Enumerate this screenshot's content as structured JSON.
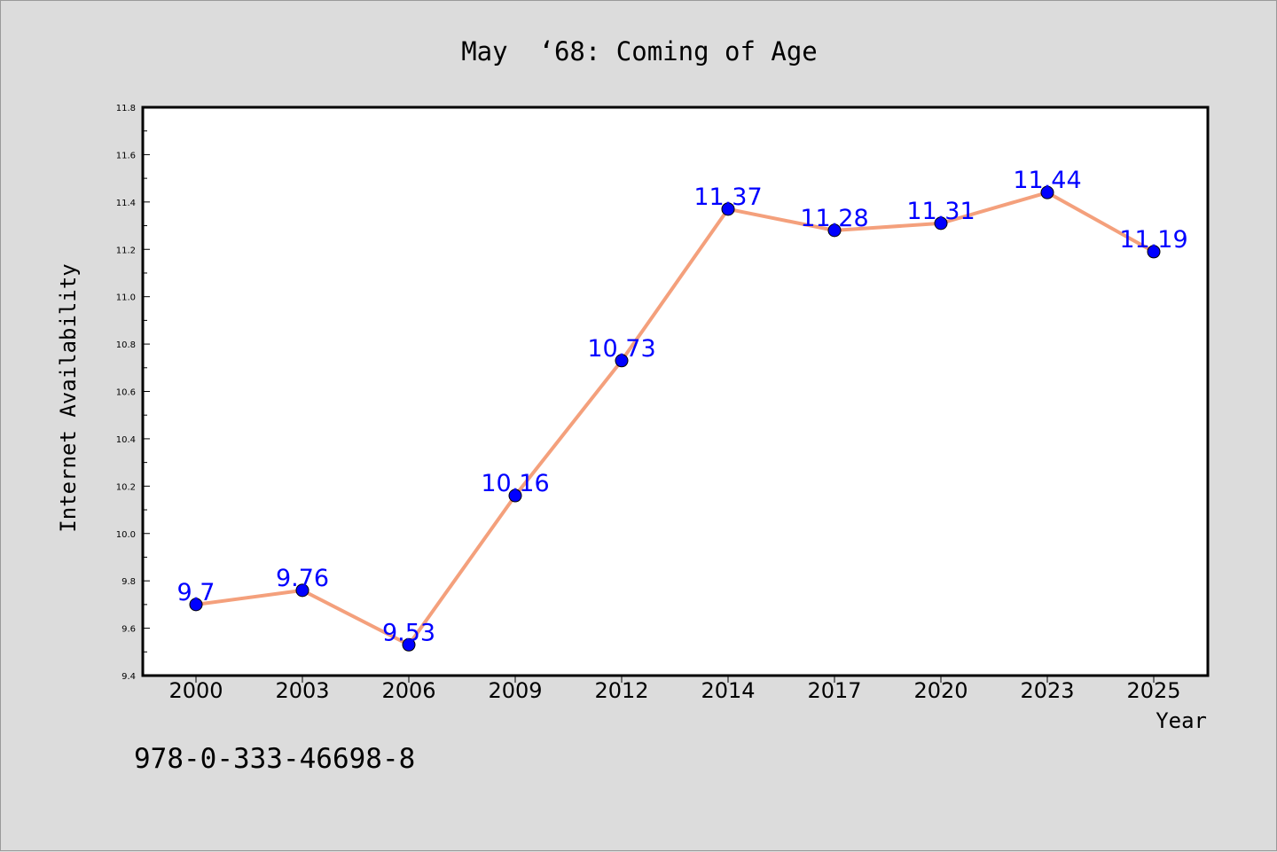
{
  "chart_data": {
    "type": "line",
    "title": "May  ‘68: Coming of Age",
    "xlabel": "Year",
    "ylabel": "Internet Availability",
    "categories": [
      "2000",
      "2003",
      "2006",
      "2009",
      "2012",
      "2014",
      "2017",
      "2020",
      "2023",
      "2025"
    ],
    "series": [
      {
        "values": [
          9.7,
          9.76,
          9.53,
          10.16,
          10.73,
          11.37,
          11.28,
          11.31,
          11.44,
          11.19
        ],
        "labels": [
          "9.7",
          "9.76",
          "9.53",
          "10.16",
          "10.73",
          "11.37",
          "11.28",
          "11.31",
          "11.44",
          "11.19"
        ],
        "line_color": "#f4a07c",
        "marker_color": "#0000ff",
        "label_color": "#0000ff"
      }
    ],
    "ylim": [
      9.4,
      11.8
    ],
    "yticks": [
      "9.4",
      "9.6",
      "9.8",
      "10.0",
      "10.2",
      "10.4",
      "10.6",
      "10.8",
      "11.0",
      "11.2",
      "11.4",
      "11.6",
      "11.8"
    ],
    "grid": false,
    "legend": "none"
  },
  "footer": {
    "isbn": "978-0-333-46698-8"
  },
  "colors": {
    "background": "#dcdcdc",
    "plot_area": "#ffffff",
    "axes": "#000000"
  }
}
